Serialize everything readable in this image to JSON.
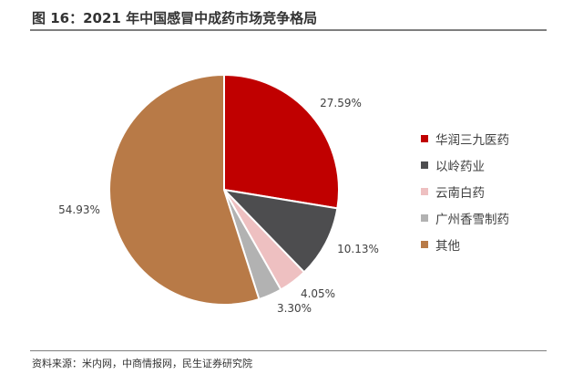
{
  "title": "图 16：2021 年中国感冒中成药市场竞争格局",
  "source": "资料来源：米内网，中商情报网，民生证券研究院",
  "chart_data": {
    "type": "pie",
    "title": "图 16：2021 年中国感冒中成药市场竞争格局",
    "slices": [
      {
        "label": "华润三九医药",
        "value": 27.59,
        "display": "27.59%",
        "color": "#c00000"
      },
      {
        "label": "以岭药业",
        "value": 10.13,
        "display": "10.13%",
        "color": "#4d4d4f"
      },
      {
        "label": "云南白药",
        "value": 4.05,
        "display": "4.05%",
        "color": "#eec0c1"
      },
      {
        "label": "广州香雪制药",
        "value": 3.3,
        "display": "3.30%",
        "color": "#b2b2b2"
      },
      {
        "label": "其他",
        "value": 54.93,
        "display": "54.93%",
        "color": "#b87a47"
      }
    ],
    "legend_position": "right",
    "start_angle": "12 o'clock",
    "direction": "clockwise"
  }
}
